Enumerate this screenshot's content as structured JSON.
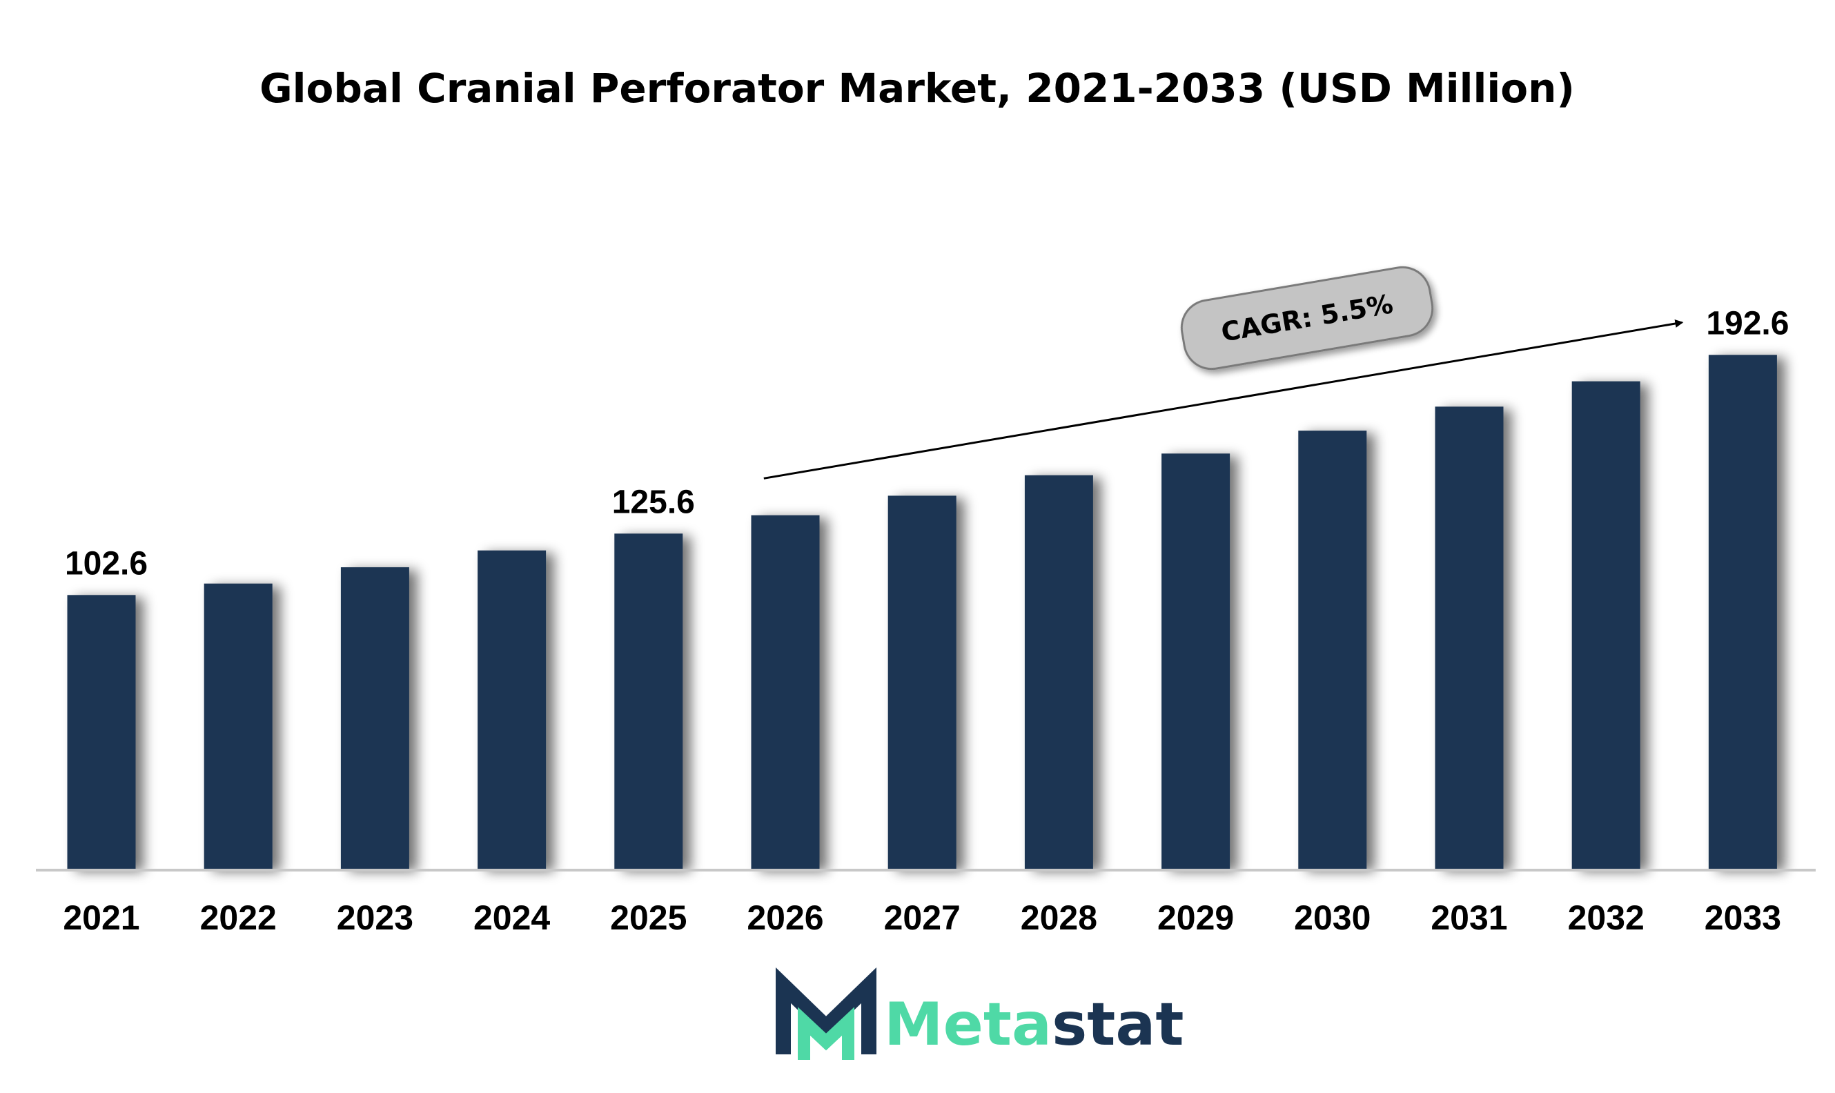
{
  "chart_data": {
    "type": "bar",
    "title": "Global Cranial Perforator Market, 2021-2033 (USD Million)",
    "xlabel": "",
    "ylabel": "",
    "categories": [
      "2021",
      "2022",
      "2023",
      "2024",
      "2025",
      "2026",
      "2027",
      "2028",
      "2029",
      "2030",
      "2031",
      "2032",
      "2033"
    ],
    "values": [
      102.6,
      106.9,
      113.0,
      119.3,
      125.6,
      132.5,
      139.8,
      147.5,
      155.6,
      164.2,
      173.2,
      182.7,
      192.6
    ],
    "data_labels": [
      {
        "category": "2021",
        "text": "102.6"
      },
      {
        "category": "2025",
        "text": "125.6"
      },
      {
        "category": "2033",
        "text": "192.6"
      }
    ],
    "annotation": {
      "text": "CAGR: 5.5%",
      "from_category": "2025",
      "to_category": "2033"
    },
    "ylim": [
      0,
      195
    ],
    "grid": false,
    "legend": "none",
    "colors": {
      "bar": "#1b3452",
      "axis": "#c8c8c8",
      "badge_fill": "#c4c4c4",
      "badge_stroke": "#7a7a7a"
    }
  },
  "branding": {
    "logo_part1": "Meta",
    "logo_part2": "stat",
    "logo_icon": "metastat-m-logo-icon",
    "colors": {
      "primary": "#1b3452",
      "accent": "#4fd9a6"
    }
  }
}
